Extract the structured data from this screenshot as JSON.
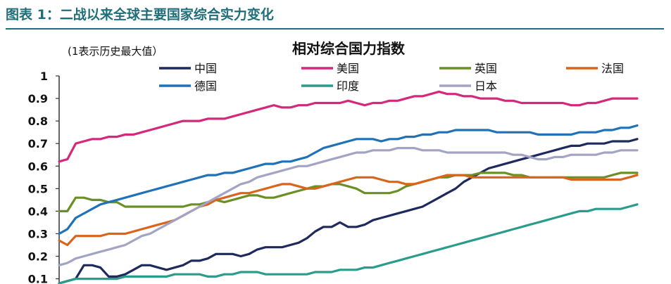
{
  "figure_title": "图表 1：二战以来全球主要国家综合实力变化",
  "chart_data": {
    "type": "line",
    "title": "相对综合国力指数",
    "subtitle": "(1表示历史最大值）",
    "ylim": [
      0.08,
      1.0
    ],
    "yticks": [
      0.1,
      0.2,
      0.3,
      0.4,
      0.5,
      0.6,
      0.7,
      0.8,
      0.9,
      1
    ],
    "ytick_labels": [
      "0.1",
      "0.2",
      "0.3",
      "0.4",
      "0.5",
      "0.6",
      "0.7",
      "0.8",
      "0.9",
      "1"
    ],
    "x": [
      0,
      1,
      2,
      3,
      4,
      5,
      6,
      7,
      8,
      9,
      10,
      11,
      12,
      13,
      14,
      15,
      16,
      17,
      18,
      19,
      20,
      21,
      22,
      23,
      24,
      25,
      26,
      27,
      28,
      29,
      30,
      31,
      32,
      33,
      34,
      35,
      36,
      37,
      38,
      39,
      40,
      41,
      42,
      43,
      44,
      45,
      46,
      47,
      48,
      49,
      50,
      51,
      52,
      53,
      54,
      55,
      56,
      57,
      58,
      59,
      60,
      61,
      62,
      63,
      64,
      65,
      66,
      67,
      68,
      69,
      70
    ],
    "legend_position": "top",
    "series": [
      {
        "name": "中国",
        "color": "#1f2a5c",
        "values": [
          0.08,
          0.09,
          0.1,
          0.16,
          0.16,
          0.15,
          0.11,
          0.11,
          0.12,
          0.14,
          0.16,
          0.16,
          0.15,
          0.14,
          0.15,
          0.16,
          0.18,
          0.18,
          0.19,
          0.21,
          0.21,
          0.21,
          0.2,
          0.21,
          0.23,
          0.24,
          0.24,
          0.24,
          0.25,
          0.26,
          0.28,
          0.31,
          0.33,
          0.33,
          0.35,
          0.33,
          0.33,
          0.34,
          0.36,
          0.37,
          0.38,
          0.39,
          0.4,
          0.41,
          0.42,
          0.44,
          0.46,
          0.48,
          0.5,
          0.53,
          0.55,
          0.57,
          0.59,
          0.6,
          0.61,
          0.62,
          0.63,
          0.64,
          0.65,
          0.66,
          0.67,
          0.68,
          0.69,
          0.69,
          0.7,
          0.7,
          0.7,
          0.71,
          0.71,
          0.71,
          0.72
        ]
      },
      {
        "name": "美国",
        "color": "#d4287a",
        "values": [
          0.62,
          0.63,
          0.7,
          0.71,
          0.72,
          0.72,
          0.73,
          0.73,
          0.74,
          0.74,
          0.75,
          0.76,
          0.77,
          0.78,
          0.79,
          0.8,
          0.8,
          0.8,
          0.81,
          0.81,
          0.81,
          0.82,
          0.83,
          0.84,
          0.85,
          0.86,
          0.87,
          0.86,
          0.86,
          0.87,
          0.87,
          0.88,
          0.88,
          0.88,
          0.88,
          0.89,
          0.88,
          0.87,
          0.88,
          0.88,
          0.89,
          0.89,
          0.9,
          0.91,
          0.91,
          0.92,
          0.93,
          0.92,
          0.92,
          0.91,
          0.91,
          0.9,
          0.9,
          0.9,
          0.89,
          0.89,
          0.88,
          0.88,
          0.88,
          0.88,
          0.88,
          0.88,
          0.87,
          0.87,
          0.88,
          0.88,
          0.89,
          0.9,
          0.9,
          0.9,
          0.9
        ]
      },
      {
        "name": "英国",
        "color": "#6a8f25",
        "values": [
          0.4,
          0.4,
          0.46,
          0.46,
          0.45,
          0.45,
          0.44,
          0.44,
          0.42,
          0.42,
          0.42,
          0.42,
          0.42,
          0.42,
          0.42,
          0.42,
          0.43,
          0.43,
          0.44,
          0.45,
          0.44,
          0.45,
          0.46,
          0.47,
          0.47,
          0.46,
          0.46,
          0.47,
          0.48,
          0.49,
          0.5,
          0.51,
          0.51,
          0.52,
          0.52,
          0.51,
          0.5,
          0.48,
          0.48,
          0.48,
          0.48,
          0.49,
          0.51,
          0.52,
          0.53,
          0.54,
          0.55,
          0.55,
          0.56,
          0.56,
          0.56,
          0.57,
          0.57,
          0.57,
          0.57,
          0.56,
          0.56,
          0.55,
          0.55,
          0.55,
          0.55,
          0.55,
          0.55,
          0.55,
          0.55,
          0.55,
          0.55,
          0.56,
          0.57,
          0.57,
          0.57
        ]
      },
      {
        "name": "法国",
        "color": "#d9641c",
        "values": [
          0.27,
          0.25,
          0.29,
          0.29,
          0.29,
          0.29,
          0.3,
          0.3,
          0.3,
          0.31,
          0.32,
          0.33,
          0.34,
          0.35,
          0.36,
          0.38,
          0.4,
          0.42,
          0.43,
          0.45,
          0.46,
          0.47,
          0.48,
          0.48,
          0.49,
          0.5,
          0.51,
          0.52,
          0.52,
          0.51,
          0.5,
          0.5,
          0.51,
          0.52,
          0.53,
          0.54,
          0.55,
          0.55,
          0.55,
          0.54,
          0.53,
          0.53,
          0.52,
          0.52,
          0.53,
          0.54,
          0.55,
          0.56,
          0.56,
          0.56,
          0.55,
          0.55,
          0.55,
          0.55,
          0.55,
          0.55,
          0.55,
          0.55,
          0.55,
          0.55,
          0.55,
          0.55,
          0.54,
          0.54,
          0.54,
          0.54,
          0.54,
          0.54,
          0.54,
          0.55,
          0.56
        ]
      },
      {
        "name": "德国",
        "color": "#1f72b8",
        "values": [
          0.3,
          0.32,
          0.37,
          0.39,
          0.41,
          0.43,
          0.44,
          0.45,
          0.46,
          0.47,
          0.48,
          0.49,
          0.5,
          0.51,
          0.52,
          0.53,
          0.54,
          0.55,
          0.56,
          0.56,
          0.57,
          0.57,
          0.58,
          0.59,
          0.6,
          0.61,
          0.61,
          0.62,
          0.62,
          0.63,
          0.64,
          0.66,
          0.68,
          0.69,
          0.7,
          0.71,
          0.72,
          0.72,
          0.72,
          0.71,
          0.72,
          0.72,
          0.73,
          0.73,
          0.74,
          0.74,
          0.75,
          0.75,
          0.76,
          0.76,
          0.76,
          0.76,
          0.76,
          0.75,
          0.75,
          0.75,
          0.75,
          0.75,
          0.74,
          0.74,
          0.74,
          0.74,
          0.74,
          0.75,
          0.75,
          0.75,
          0.76,
          0.76,
          0.77,
          0.77,
          0.78
        ]
      },
      {
        "name": "印度",
        "color": "#2a9c8c",
        "values": [
          0.08,
          0.09,
          0.1,
          0.1,
          0.1,
          0.1,
          0.1,
          0.1,
          0.11,
          0.11,
          0.11,
          0.11,
          0.11,
          0.11,
          0.12,
          0.12,
          0.12,
          0.12,
          0.11,
          0.11,
          0.12,
          0.12,
          0.13,
          0.13,
          0.13,
          0.12,
          0.12,
          0.12,
          0.12,
          0.12,
          0.12,
          0.13,
          0.13,
          0.13,
          0.14,
          0.14,
          0.14,
          0.15,
          0.15,
          0.16,
          0.17,
          0.18,
          0.19,
          0.2,
          0.21,
          0.22,
          0.23,
          0.24,
          0.25,
          0.26,
          0.27,
          0.28,
          0.29,
          0.3,
          0.31,
          0.32,
          0.33,
          0.34,
          0.35,
          0.36,
          0.37,
          0.38,
          0.39,
          0.4,
          0.4,
          0.41,
          0.41,
          0.41,
          0.41,
          0.42,
          0.43
        ]
      },
      {
        "name": "日本",
        "color": "#a3a4c4",
        "values": [
          0.16,
          0.17,
          0.19,
          0.2,
          0.21,
          0.22,
          0.23,
          0.24,
          0.25,
          0.27,
          0.29,
          0.3,
          0.32,
          0.34,
          0.36,
          0.38,
          0.4,
          0.42,
          0.44,
          0.46,
          0.48,
          0.5,
          0.52,
          0.53,
          0.55,
          0.56,
          0.57,
          0.58,
          0.59,
          0.6,
          0.6,
          0.61,
          0.62,
          0.63,
          0.64,
          0.65,
          0.66,
          0.66,
          0.67,
          0.67,
          0.67,
          0.68,
          0.68,
          0.68,
          0.67,
          0.67,
          0.67,
          0.66,
          0.66,
          0.66,
          0.66,
          0.66,
          0.66,
          0.66,
          0.66,
          0.65,
          0.65,
          0.64,
          0.63,
          0.63,
          0.64,
          0.64,
          0.65,
          0.65,
          0.65,
          0.65,
          0.66,
          0.66,
          0.67,
          0.67,
          0.67
        ]
      }
    ]
  }
}
